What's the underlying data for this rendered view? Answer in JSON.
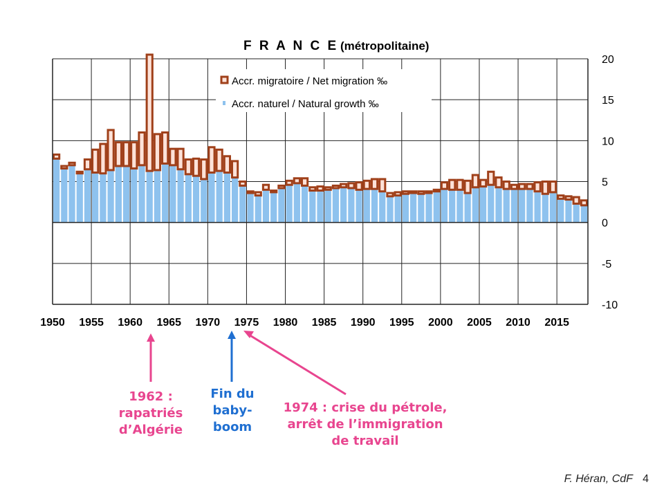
{
  "chart_data": {
    "type": "bar",
    "title": "F R A N C E",
    "subtitle": "(métropolitaine)",
    "xlabel": "",
    "ylabel": "",
    "ylim": [
      -10,
      20
    ],
    "yticks": [
      20,
      15,
      10,
      5,
      0,
      -5,
      -10
    ],
    "xticks": [
      1950,
      1955,
      1960,
      1965,
      1970,
      1975,
      1980,
      1985,
      1990,
      1995,
      2000,
      2005,
      2010,
      2015
    ],
    "grid": true,
    "legend_position": "top-center",
    "years": [
      1950,
      1951,
      1952,
      1953,
      1954,
      1955,
      1956,
      1957,
      1958,
      1959,
      1960,
      1961,
      1962,
      1963,
      1964,
      1965,
      1966,
      1967,
      1968,
      1969,
      1970,
      1971,
      1972,
      1973,
      1974,
      1975,
      1976,
      1977,
      1978,
      1979,
      1980,
      1981,
      1982,
      1983,
      1984,
      1985,
      1986,
      1987,
      1988,
      1989,
      1990,
      1991,
      1992,
      1993,
      1994,
      1995,
      1996,
      1997,
      1998,
      1999,
      2000,
      2001,
      2002,
      2003,
      2004,
      2005,
      2006,
      2007,
      2008,
      2009,
      2010,
      2011,
      2012,
      2013,
      2014,
      2015,
      2016,
      2017,
      2018
    ],
    "series": [
      {
        "name": "Accr. naturel / Natural growth ‰",
        "color": "#8ec2ee",
        "values": [
          7.8,
          6.6,
          7.0,
          6.0,
          6.5,
          6.1,
          6.0,
          6.4,
          6.9,
          6.9,
          6.6,
          7.0,
          6.3,
          6.4,
          7.2,
          7.0,
          6.5,
          5.9,
          5.7,
          5.3,
          6.1,
          6.3,
          6.1,
          5.5,
          4.5,
          3.6,
          3.3,
          4.0,
          3.7,
          4.2,
          4.6,
          4.8,
          4.5,
          3.9,
          3.9,
          4.0,
          4.2,
          4.3,
          4.2,
          4.0,
          4.1,
          4.1,
          3.8,
          3.2,
          3.3,
          3.5,
          3.6,
          3.5,
          3.6,
          3.8,
          4.1,
          4.0,
          4.0,
          3.6,
          4.3,
          4.4,
          4.6,
          4.3,
          4.1,
          4.1,
          4.1,
          4.1,
          3.8,
          3.5,
          3.7,
          2.9,
          2.8,
          2.3,
          2.1
        ]
      },
      {
        "name": "Accr. migratoire / Net migration ‰",
        "color": "#a0401a",
        "values": [
          0.5,
          0.3,
          0.3,
          0.2,
          1.2,
          2.8,
          3.6,
          4.9,
          2.9,
          2.9,
          3.2,
          4.0,
          14.4,
          4.4,
          3.8,
          2.0,
          2.5,
          1.8,
          2.1,
          2.4,
          3.1,
          2.6,
          2.0,
          2.0,
          0.5,
          0.2,
          0.4,
          0.6,
          0.2,
          0.3,
          0.5,
          0.6,
          0.9,
          0.4,
          0.5,
          0.3,
          0.3,
          0.4,
          0.6,
          0.9,
          1.0,
          1.2,
          1.5,
          0.4,
          0.4,
          0.3,
          0.2,
          0.3,
          0.2,
          0.2,
          0.8,
          1.2,
          1.2,
          1.5,
          1.5,
          0.8,
          1.6,
          1.2,
          0.9,
          0.5,
          0.6,
          0.6,
          1.1,
          1.5,
          1.3,
          0.4,
          0.4,
          0.8,
          0.6
        ]
      }
    ]
  },
  "legend": {
    "migration_label": "Accr. migratoire / Net migration ‰",
    "natural_label": "Accr. naturel / Natural growth ‰"
  },
  "colors": {
    "natural_fill": "#8ec2ee",
    "migration_stroke": "#a0401a",
    "migration_fill": "#fde2d8",
    "annot_pink": "#e8458f",
    "annot_blue": "#1f6fd1"
  },
  "annotations": {
    "a1962": {
      "line1": "1962 :",
      "line2": "rapatriés",
      "line3": "d’Algérie"
    },
    "a_babyboom": {
      "line1": "Fin du",
      "line2": "baby-",
      "line3": "boom"
    },
    "a1974": {
      "line1": "1974 : crise du pétrole,",
      "line2": "arrêt de l’immigration",
      "line3": "de travail"
    }
  },
  "credit": {
    "author": "F. Héran,  CdF",
    "page": "4"
  }
}
